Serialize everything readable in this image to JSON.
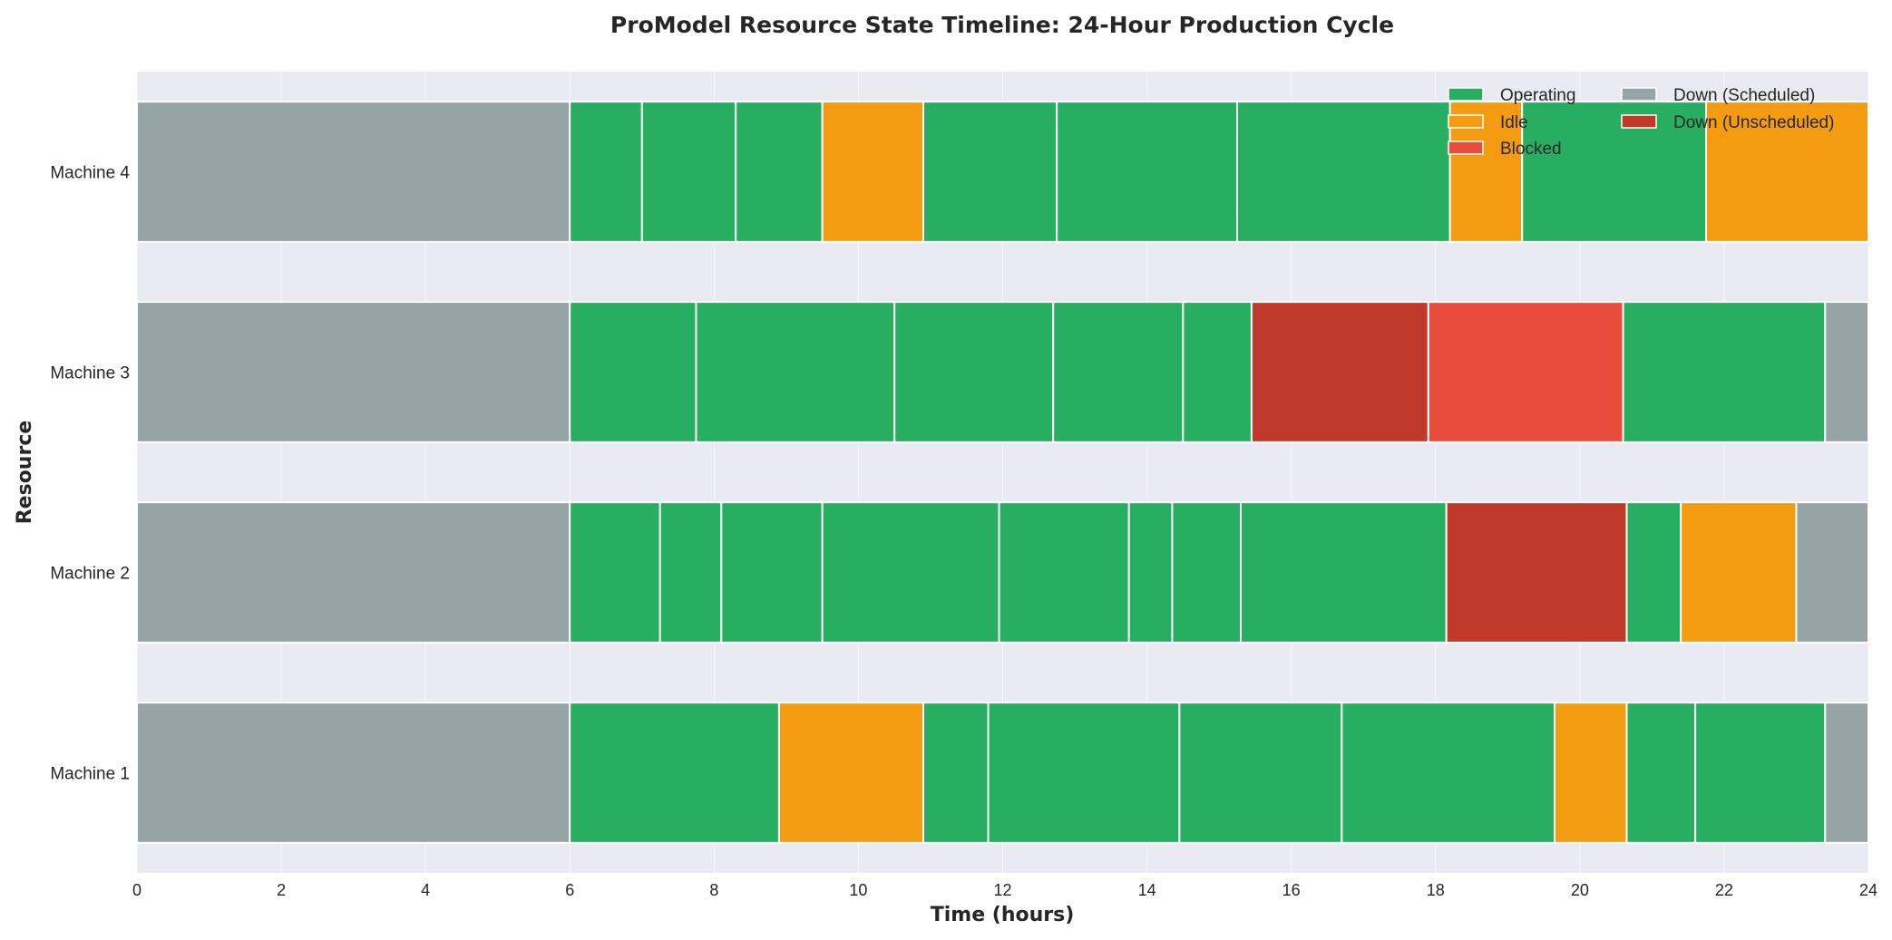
{
  "chart_data": {
    "type": "gantt",
    "title": "ProModel Resource State Timeline: 24-Hour Production Cycle",
    "xlabel": "Time (hours)",
    "ylabel": "Resource",
    "xlim": [
      0,
      24
    ],
    "xticks": [
      0,
      2,
      4,
      6,
      8,
      10,
      12,
      14,
      16,
      18,
      20,
      22,
      24
    ],
    "grid": true,
    "legend_position": "top-right",
    "states": [
      {
        "key": "operating",
        "name": "Operating",
        "color": "#27ae60"
      },
      {
        "key": "idle",
        "name": "Idle",
        "color": "#f39c12"
      },
      {
        "key": "blocked",
        "name": "Blocked",
        "color": "#e74c3c"
      },
      {
        "key": "down_scheduled",
        "name": "Down (Scheduled)",
        "color": "#95a5a6"
      },
      {
        "key": "down_unscheduled",
        "name": "Down (Unscheduled)",
        "color": "#c0392b"
      }
    ],
    "resources": [
      {
        "name": "Machine 4",
        "segments": [
          {
            "start": 0,
            "end": 6,
            "state": "down_scheduled"
          },
          {
            "start": 6,
            "end": 7.0,
            "state": "operating"
          },
          {
            "start": 7.0,
            "end": 8.3,
            "state": "operating"
          },
          {
            "start": 8.3,
            "end": 9.5,
            "state": "operating"
          },
          {
            "start": 9.5,
            "end": 10.9,
            "state": "idle"
          },
          {
            "start": 10.9,
            "end": 12.75,
            "state": "operating"
          },
          {
            "start": 12.75,
            "end": 15.25,
            "state": "operating"
          },
          {
            "start": 15.25,
            "end": 18.2,
            "state": "operating"
          },
          {
            "start": 18.2,
            "end": 19.2,
            "state": "idle"
          },
          {
            "start": 19.2,
            "end": 21.75,
            "state": "operating"
          },
          {
            "start": 21.75,
            "end": 24,
            "state": "idle"
          }
        ]
      },
      {
        "name": "Machine 3",
        "segments": [
          {
            "start": 0,
            "end": 6,
            "state": "down_scheduled"
          },
          {
            "start": 6,
            "end": 7.75,
            "state": "operating"
          },
          {
            "start": 7.75,
            "end": 10.5,
            "state": "operating"
          },
          {
            "start": 10.5,
            "end": 12.7,
            "state": "operating"
          },
          {
            "start": 12.7,
            "end": 14.5,
            "state": "operating"
          },
          {
            "start": 14.5,
            "end": 15.45,
            "state": "operating"
          },
          {
            "start": 15.45,
            "end": 17.9,
            "state": "down_unscheduled"
          },
          {
            "start": 17.9,
            "end": 20.6,
            "state": "blocked"
          },
          {
            "start": 20.6,
            "end": 23.4,
            "state": "operating"
          },
          {
            "start": 23.4,
            "end": 24,
            "state": "down_scheduled"
          }
        ]
      },
      {
        "name": "Machine 2",
        "segments": [
          {
            "start": 0,
            "end": 6,
            "state": "down_scheduled"
          },
          {
            "start": 6,
            "end": 7.25,
            "state": "operating"
          },
          {
            "start": 7.25,
            "end": 8.1,
            "state": "operating"
          },
          {
            "start": 8.1,
            "end": 9.5,
            "state": "operating"
          },
          {
            "start": 9.5,
            "end": 11.95,
            "state": "operating"
          },
          {
            "start": 11.95,
            "end": 13.75,
            "state": "operating"
          },
          {
            "start": 13.75,
            "end": 14.35,
            "state": "operating"
          },
          {
            "start": 14.35,
            "end": 15.3,
            "state": "operating"
          },
          {
            "start": 15.3,
            "end": 18.15,
            "state": "operating"
          },
          {
            "start": 18.15,
            "end": 20.65,
            "state": "down_unscheduled"
          },
          {
            "start": 20.65,
            "end": 21.4,
            "state": "operating"
          },
          {
            "start": 21.4,
            "end": 23.0,
            "state": "idle"
          },
          {
            "start": 23.0,
            "end": 24,
            "state": "down_scheduled"
          }
        ]
      },
      {
        "name": "Machine 1",
        "segments": [
          {
            "start": 0,
            "end": 6,
            "state": "down_scheduled"
          },
          {
            "start": 6,
            "end": 8.9,
            "state": "operating"
          },
          {
            "start": 8.9,
            "end": 10.9,
            "state": "idle"
          },
          {
            "start": 10.9,
            "end": 11.8,
            "state": "operating"
          },
          {
            "start": 11.8,
            "end": 14.45,
            "state": "operating"
          },
          {
            "start": 14.45,
            "end": 16.7,
            "state": "operating"
          },
          {
            "start": 16.7,
            "end": 19.65,
            "state": "operating"
          },
          {
            "start": 19.65,
            "end": 20.65,
            "state": "idle"
          },
          {
            "start": 20.65,
            "end": 21.6,
            "state": "operating"
          },
          {
            "start": 21.6,
            "end": 23.4,
            "state": "operating"
          },
          {
            "start": 23.4,
            "end": 24,
            "state": "down_scheduled"
          }
        ]
      }
    ]
  }
}
